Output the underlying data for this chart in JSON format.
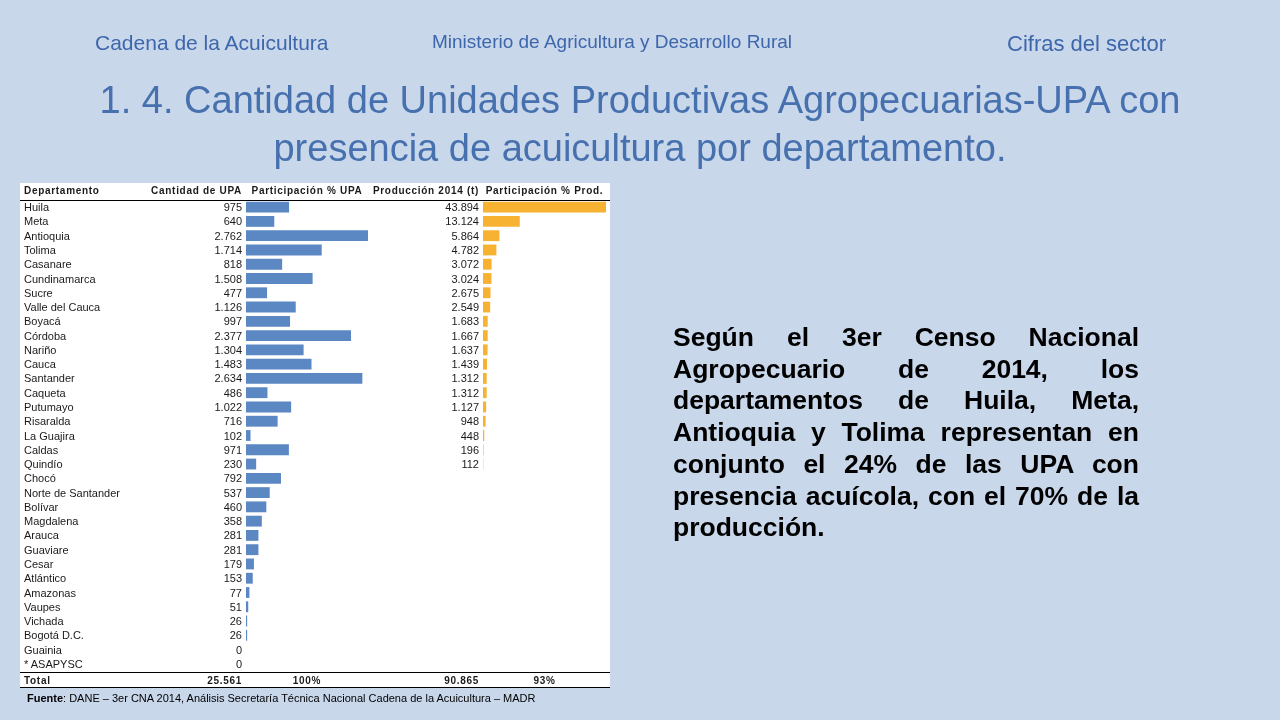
{
  "chart_data": [
    {
      "type": "bar",
      "orientation": "horizontal",
      "title": "1. 4. Cantidad de Unidades Productivas Agropecuarias-UPA con presencia de acuicultura por departamento.",
      "ylabel": "Departamento",
      "xlabel": "Participación % UPA",
      "tick_labels": "y",
      "color": "#5b87c3",
      "categories": [
        "Huila",
        "Meta",
        "Antioquia",
        "Tolima",
        "Casanare",
        "Cundinamarca",
        "Sucre",
        "Valle del Cauca",
        "Boyacá",
        "Córdoba",
        "Nariño",
        "Cauca",
        "Santander",
        "Caqueta",
        "Putumayo",
        "Risaralda",
        "La Guajira",
        "Caldas",
        "Quindío",
        "Chocó",
        "Norte de Santander",
        "Bolívar",
        "Magdalena",
        "Arauca",
        "Guaviare",
        "Cesar",
        "Atlántico",
        "Amazonas",
        "Vaupes",
        "Vichada",
        "Bogotá D.C.",
        "Guainia",
        "* ASAPYSC"
      ],
      "values": [
        975,
        640,
        2762,
        1714,
        818,
        1508,
        477,
        1126,
        997,
        2377,
        1304,
        1483,
        2634,
        486,
        1022,
        716,
        102,
        971,
        230,
        792,
        537,
        460,
        358,
        281,
        281,
        179,
        153,
        77,
        51,
        26,
        26,
        0,
        0
      ],
      "value_labels": [
        "975",
        "640",
        "2.762",
        "1.714",
        "818",
        "1.508",
        "477",
        "1.126",
        "997",
        "2.377",
        "1.304",
        "1.483",
        "2.634",
        "486",
        "1.022",
        "716",
        "102",
        "971",
        "230",
        "792",
        "537",
        "460",
        "358",
        "281",
        "281",
        "179",
        "153",
        "77",
        "51",
        "26",
        "26",
        "0",
        "0"
      ],
      "annotations": [
        "Cadena de la Acuicultura",
        "Ministerio de Agricultura y Desarrollo Rural",
        "Cifras del sector",
        "Cantidad de UPA",
        "Total",
        "25.561",
        "100%",
        "Según el 3er Censo Nacional Agropecuario de 2014, los departamentos de Huila, Meta, Antioquia y Tolima representan en conjunto el 24% de las UPA con presencia acuícola, con el 70% de la producción.",
        "Fuente: DANE – 3er CNA 2014, Análisis Secretaría Técnica Nacional Cadena de la Acuicultura – MADR"
      ]
    },
    {
      "type": "bar",
      "orientation": "horizontal",
      "xlabel": "Participación % Prod.",
      "tick_labels": false,
      "color": "#f8b232",
      "categories": [
        null,
        null,
        null,
        null,
        null,
        null,
        null,
        null,
        null,
        null,
        null,
        null,
        null,
        null,
        null,
        null,
        null,
        null,
        null,
        null,
        null,
        null,
        null,
        null,
        null,
        null,
        null,
        null,
        null,
        null,
        null,
        null,
        null
      ],
      "values": [
        43894,
        13124,
        5864,
        4782,
        3072,
        3024,
        2675,
        2549,
        1683,
        1667,
        1637,
        1439,
        1312,
        1312,
        1127,
        948,
        448,
        196,
        112,
        null,
        null,
        null,
        null,
        null,
        null,
        null,
        null,
        null,
        null,
        null,
        null,
        null,
        null
      ],
      "value_labels": [
        "43.894",
        "13.124",
        "5.864",
        "4.782",
        "3.072",
        "3.024",
        "2.675",
        "2.549",
        "1.683",
        "1.667",
        "1.637",
        "1.439",
        "1.312",
        "1.312",
        "1.127",
        "948",
        "448",
        "196",
        "112",
        null,
        null,
        null,
        null,
        null,
        null,
        null,
        null,
        null,
        null,
        null,
        null,
        null,
        null
      ],
      "annotations": [
        "Producción 2014 (t)",
        "90.865",
        "93%"
      ]
    }
  ]
}
